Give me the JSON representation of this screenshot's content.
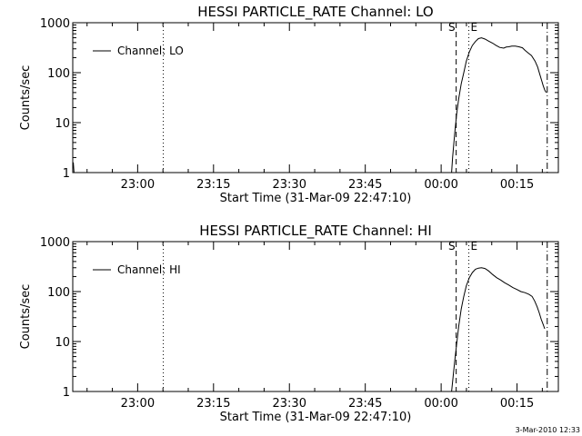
{
  "chart_data": [
    {
      "type": "line",
      "title": "HESSI PARTICLE_RATE Channel: LO",
      "xlabel": "Start Time (31-Mar-09 22:47:10)",
      "ylabel": "Counts/sec",
      "yscale": "log",
      "ylim": [
        1,
        1000
      ],
      "xlim_min_from_start": [
        0,
        96
      ],
      "x_ticks": [
        {
          "label": "23:00",
          "t": 12.83
        },
        {
          "label": "23:15",
          "t": 27.83
        },
        {
          "label": "23:30",
          "t": 42.83
        },
        {
          "label": "23:45",
          "t": 57.83
        },
        {
          "label": "00:00",
          "t": 72.83
        },
        {
          "label": "00:15",
          "t": 87.83
        }
      ],
      "y_ticks": [
        {
          "label": "1",
          "v": 1
        },
        {
          "label": "10",
          "v": 10
        },
        {
          "label": "100",
          "v": 100
        },
        {
          "label": "1000",
          "v": 1000
        }
      ],
      "legend": {
        "position": "top-left",
        "entries": [
          "Channel: LO"
        ]
      },
      "markers": [
        {
          "style": "dotted",
          "t": 17.9,
          "label": ""
        },
        {
          "style": "dashed",
          "t": 75.8,
          "label": "S"
        },
        {
          "style": "dotted",
          "t": 78.3,
          "label": "E"
        },
        {
          "style": "dashdot",
          "t": 93.8,
          "label": ""
        }
      ],
      "series": [
        {
          "values": [
            [
              0.1,
              1.6
            ],
            [
              0.25,
              1.0
            ]
          ],
          "continue": [
            [
              74.9,
              1
            ],
            [
              75.1,
              2
            ],
            [
              75.5,
              6
            ],
            [
              75.9,
              15
            ],
            [
              76.3,
              30
            ],
            [
              76.8,
              60
            ],
            [
              77.3,
              100
            ],
            [
              77.8,
              170
            ],
            [
              78.4,
              260
            ],
            [
              79,
              350
            ],
            [
              79.6,
              420
            ],
            [
              80.2,
              480
            ],
            [
              80.8,
              500
            ],
            [
              81.5,
              470
            ],
            [
              82.2,
              430
            ],
            [
              83,
              390
            ],
            [
              83.7,
              350
            ],
            [
              84.4,
              320
            ],
            [
              85.2,
              310
            ],
            [
              85.7,
              325
            ],
            [
              86.2,
              330
            ],
            [
              86.8,
              340
            ],
            [
              87.5,
              340
            ],
            [
              88.2,
              330
            ],
            [
              88.9,
              315
            ],
            [
              89.4,
              280
            ],
            [
              90,
              250
            ],
            [
              90.7,
              220
            ],
            [
              91.4,
              170
            ],
            [
              91.9,
              130
            ],
            [
              92.3,
              95
            ],
            [
              92.7,
              70
            ],
            [
              93,
              55
            ],
            [
              93.3,
              45
            ],
            [
              93.6,
              40
            ]
          ]
        }
      ]
    },
    {
      "type": "line",
      "title": "HESSI PARTICLE_RATE Channel: HI",
      "xlabel": "Start Time (31-Mar-09 22:47:10)",
      "ylabel": "Counts/sec",
      "yscale": "log",
      "ylim": [
        1,
        1000
      ],
      "xlim_min_from_start": [
        0,
        96
      ],
      "x_ticks": [
        {
          "label": "23:00",
          "t": 12.83
        },
        {
          "label": "23:15",
          "t": 27.83
        },
        {
          "label": "23:30",
          "t": 42.83
        },
        {
          "label": "23:45",
          "t": 57.83
        },
        {
          "label": "00:00",
          "t": 72.83
        },
        {
          "label": "00:15",
          "t": 87.83
        }
      ],
      "y_ticks": [
        {
          "label": "1",
          "v": 1
        },
        {
          "label": "10",
          "v": 10
        },
        {
          "label": "100",
          "v": 100
        },
        {
          "label": "1000",
          "v": 1000
        }
      ],
      "legend": {
        "position": "top-left",
        "entries": [
          "Channel: HI"
        ]
      },
      "markers": [
        {
          "style": "dotted",
          "t": 17.9,
          "label": ""
        },
        {
          "style": "dashed",
          "t": 75.8,
          "label": "S"
        },
        {
          "style": "dotted",
          "t": 78.3,
          "label": "E"
        },
        {
          "style": "dashdot",
          "t": 93.8,
          "label": ""
        }
      ],
      "series": [
        {
          "values": [],
          "continue": [
            [
              74.9,
              1
            ],
            [
              75.2,
              2
            ],
            [
              75.5,
              4
            ],
            [
              75.9,
              9
            ],
            [
              76.3,
              20
            ],
            [
              76.8,
              45
            ],
            [
              77.3,
              80
            ],
            [
              77.8,
              130
            ],
            [
              78.4,
              190
            ],
            [
              79,
              240
            ],
            [
              79.6,
              280
            ],
            [
              80.2,
              295
            ],
            [
              80.8,
              300
            ],
            [
              81.5,
              290
            ],
            [
              82.2,
              260
            ],
            [
              83,
              220
            ],
            [
              83.8,
              190
            ],
            [
              84.6,
              170
            ],
            [
              85.4,
              150
            ],
            [
              86.2,
              135
            ],
            [
              87,
              120
            ],
            [
              87.8,
              110
            ],
            [
              88.6,
              100
            ],
            [
              89.4,
              95
            ],
            [
              90.2,
              88
            ],
            [
              90.8,
              80
            ],
            [
              91.3,
              65
            ],
            [
              91.8,
              50
            ],
            [
              92.2,
              38
            ],
            [
              92.6,
              28
            ],
            [
              93,
              22
            ],
            [
              93.3,
              18
            ]
          ]
        }
      ]
    }
  ],
  "footer": {
    "timestamp": "3-Mar-2010 12:33"
  }
}
